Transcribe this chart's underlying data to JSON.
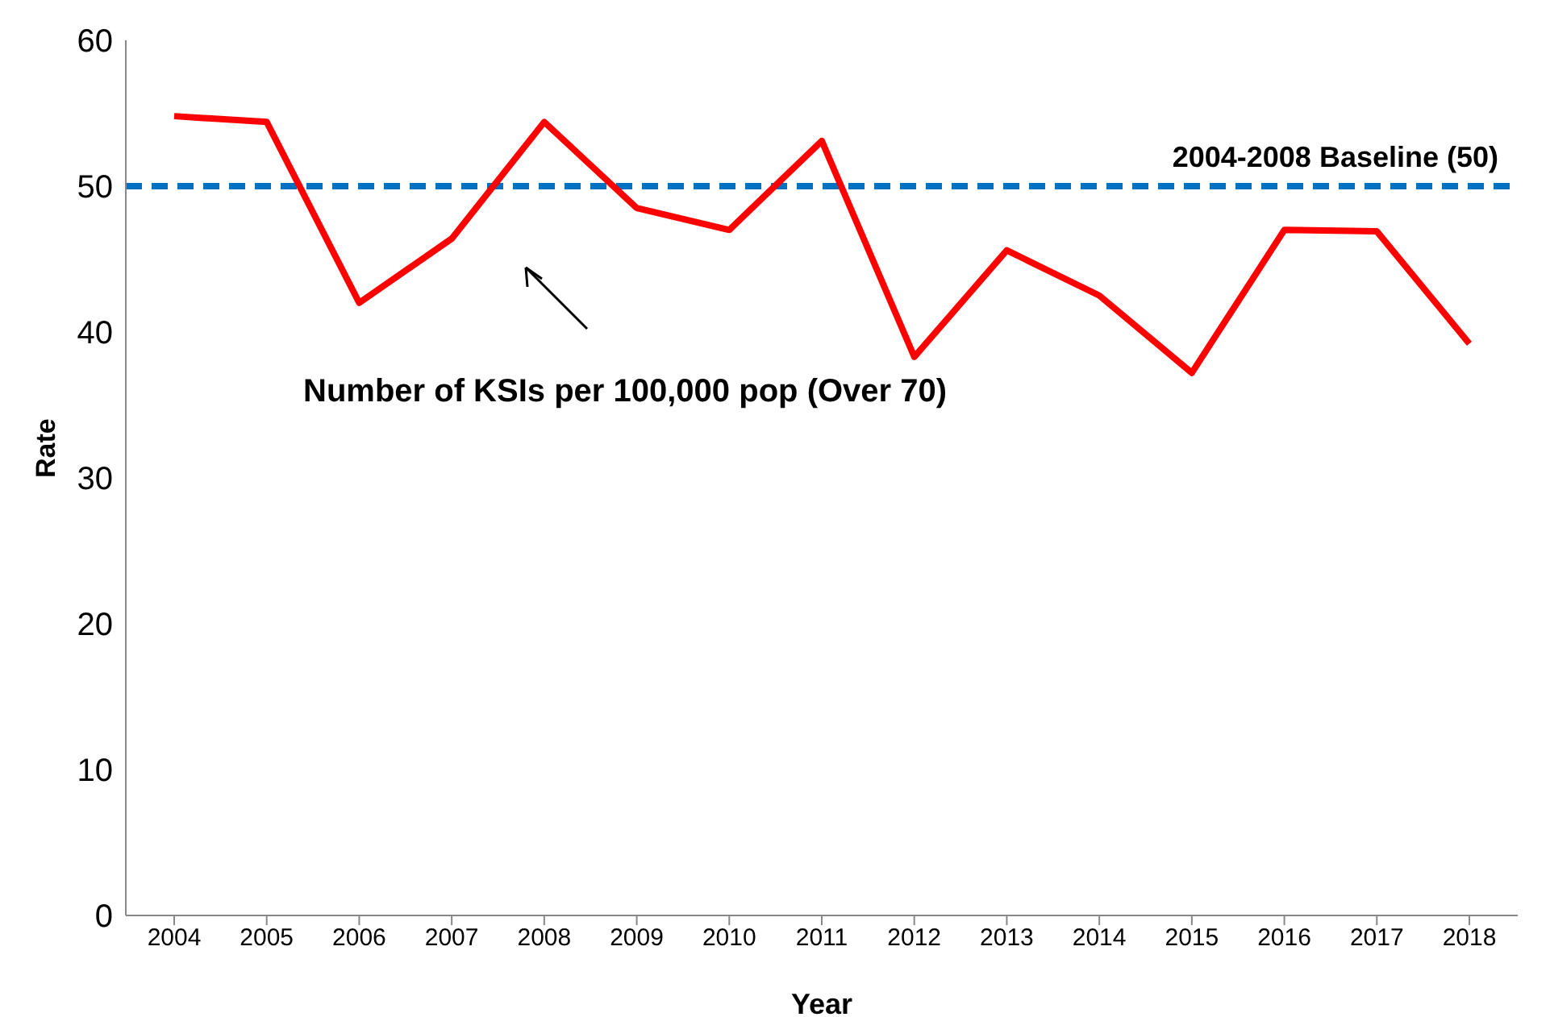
{
  "chart_data": {
    "type": "line",
    "xlabel": "Year",
    "ylabel": "Rate",
    "categories": [
      "2004",
      "2005",
      "2006",
      "2007",
      "2008",
      "2009",
      "2010",
      "2011",
      "2012",
      "2013",
      "2014",
      "2015",
      "2016",
      "2017",
      "2018"
    ],
    "series": [
      {
        "name": "Number of KSIs per 100,000 pop (Over 70)",
        "color": "#ff0000",
        "values": [
          54.8,
          54.4,
          42.0,
          46.4,
          54.4,
          48.5,
          47.0,
          53.1,
          38.3,
          45.6,
          42.5,
          37.2,
          47.0,
          46.9,
          39.2
        ]
      }
    ],
    "ylim": [
      0,
      60
    ],
    "yticks": [
      0,
      10,
      20,
      30,
      40,
      50,
      60
    ],
    "grid": false,
    "legend": false,
    "marker": "none",
    "line_style": "solid",
    "ref_lines": [
      {
        "axis": "y",
        "value": 50,
        "label": "2004-2008 Baseline (50)",
        "color": "#0070c0",
        "line_style": "dashed"
      }
    ]
  }
}
